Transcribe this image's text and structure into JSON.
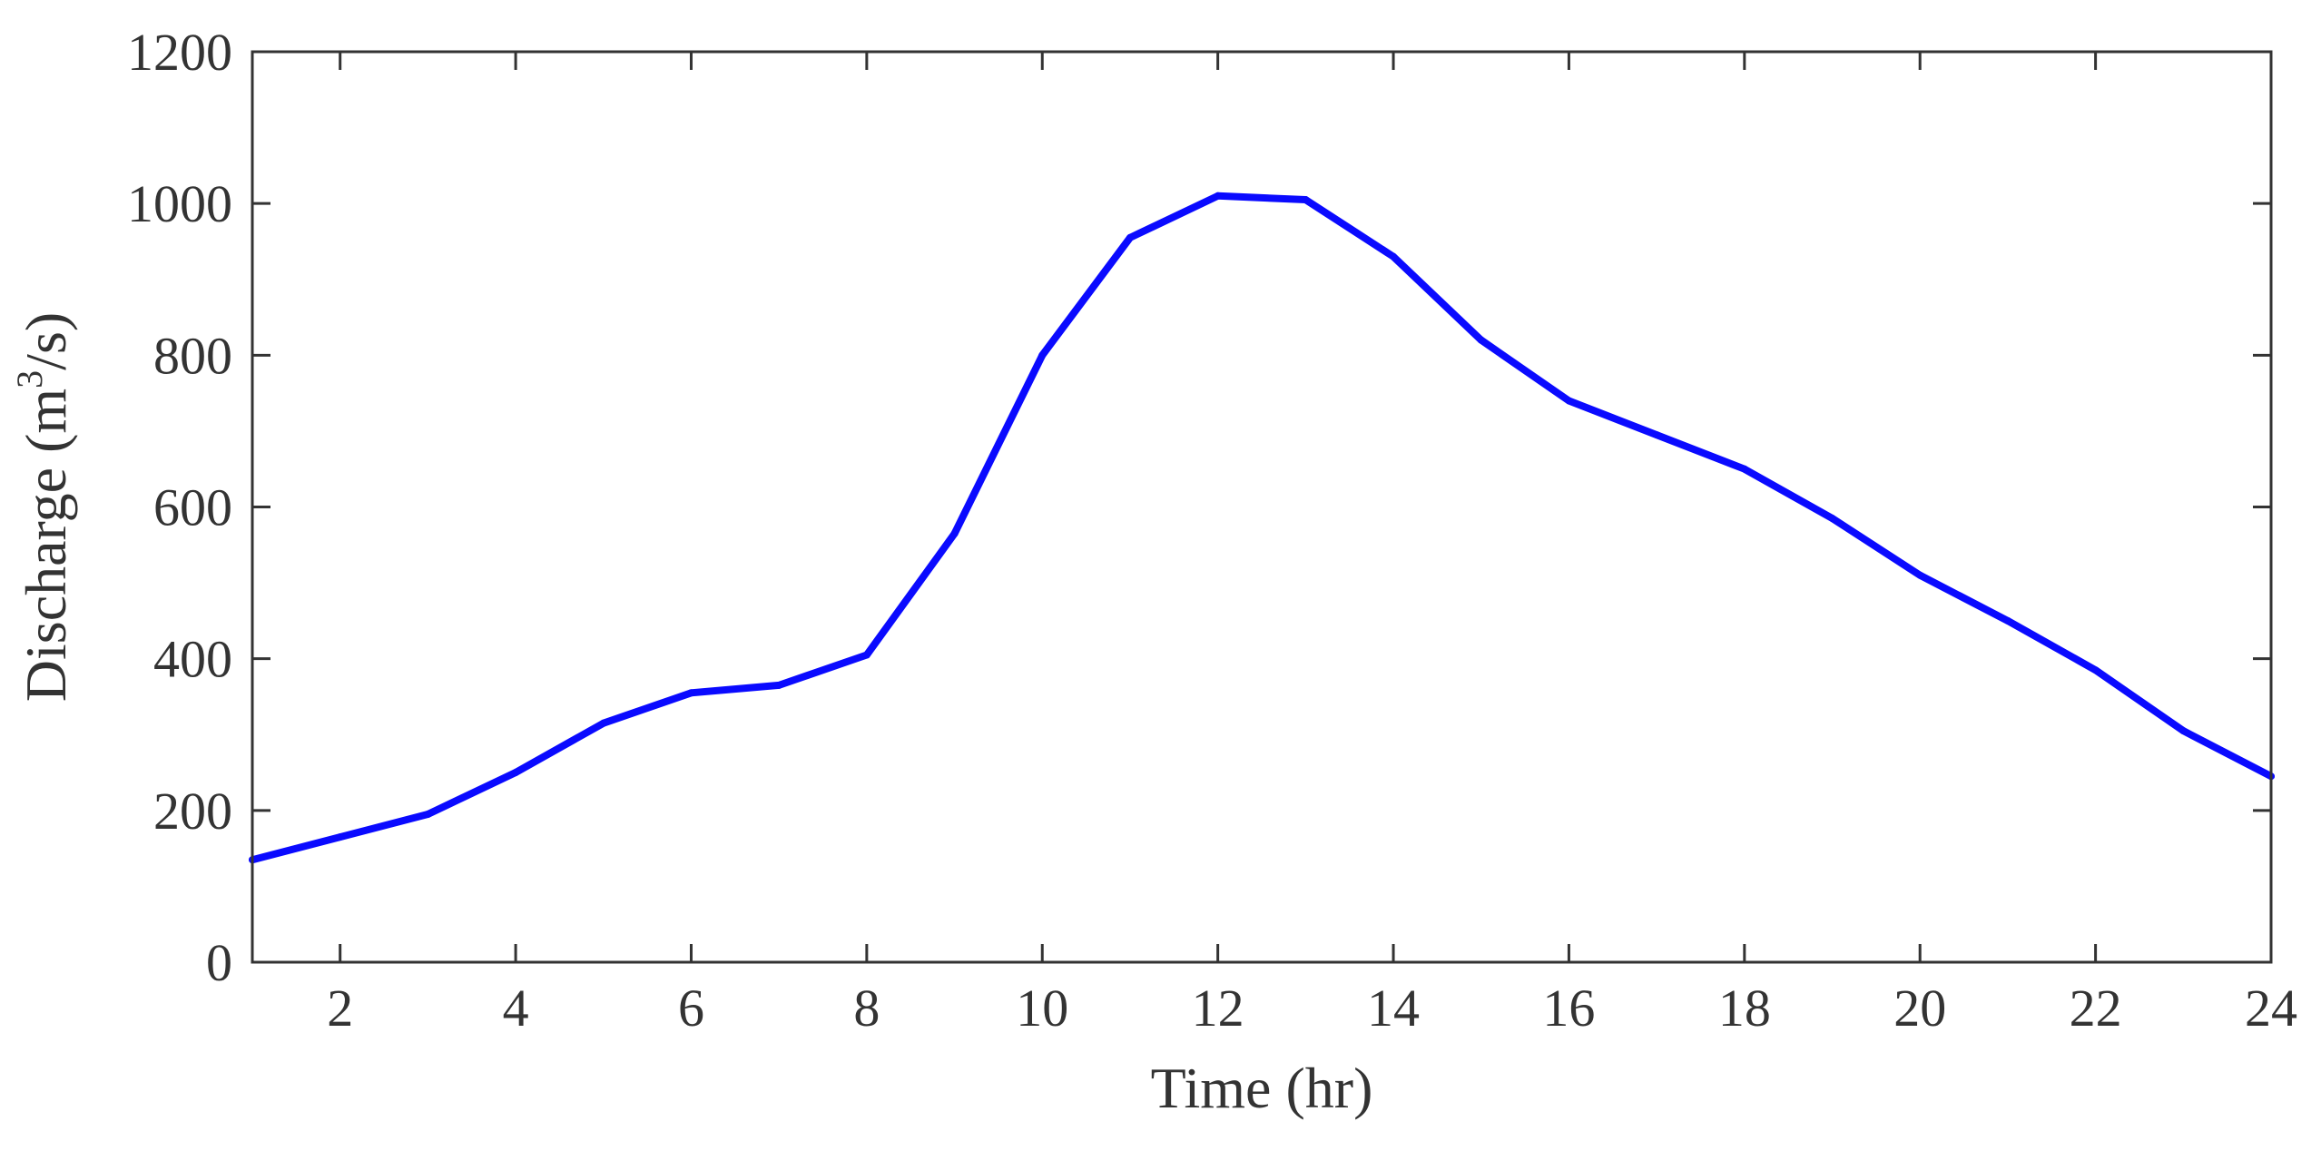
{
  "chart_data": {
    "type": "line",
    "title": "",
    "xlabel": "Time (hr)",
    "ylabel": {
      "prefix": "Discharge (m",
      "superscript": "3",
      "suffix": "/s)"
    },
    "xlim": [
      1,
      24
    ],
    "ylim": [
      0,
      1200
    ],
    "xticks": [
      2,
      4,
      6,
      8,
      10,
      12,
      14,
      16,
      18,
      20,
      22,
      24
    ],
    "yticks": [
      0,
      200,
      400,
      600,
      800,
      1000,
      1200
    ],
    "grid": false,
    "series": [
      {
        "color": "#0a0aff",
        "x": [
          1,
          2,
          3,
          4,
          5,
          6,
          7,
          8,
          9,
          10,
          11,
          12,
          13,
          14,
          15,
          16,
          17,
          18,
          19,
          20,
          21,
          22,
          23,
          24
        ],
        "y": [
          135,
          165,
          195,
          250,
          315,
          355,
          365,
          405,
          565,
          800,
          955,
          1010,
          1005,
          930,
          820,
          740,
          695,
          650,
          585,
          510,
          450,
          385,
          305,
          245
        ]
      }
    ]
  }
}
